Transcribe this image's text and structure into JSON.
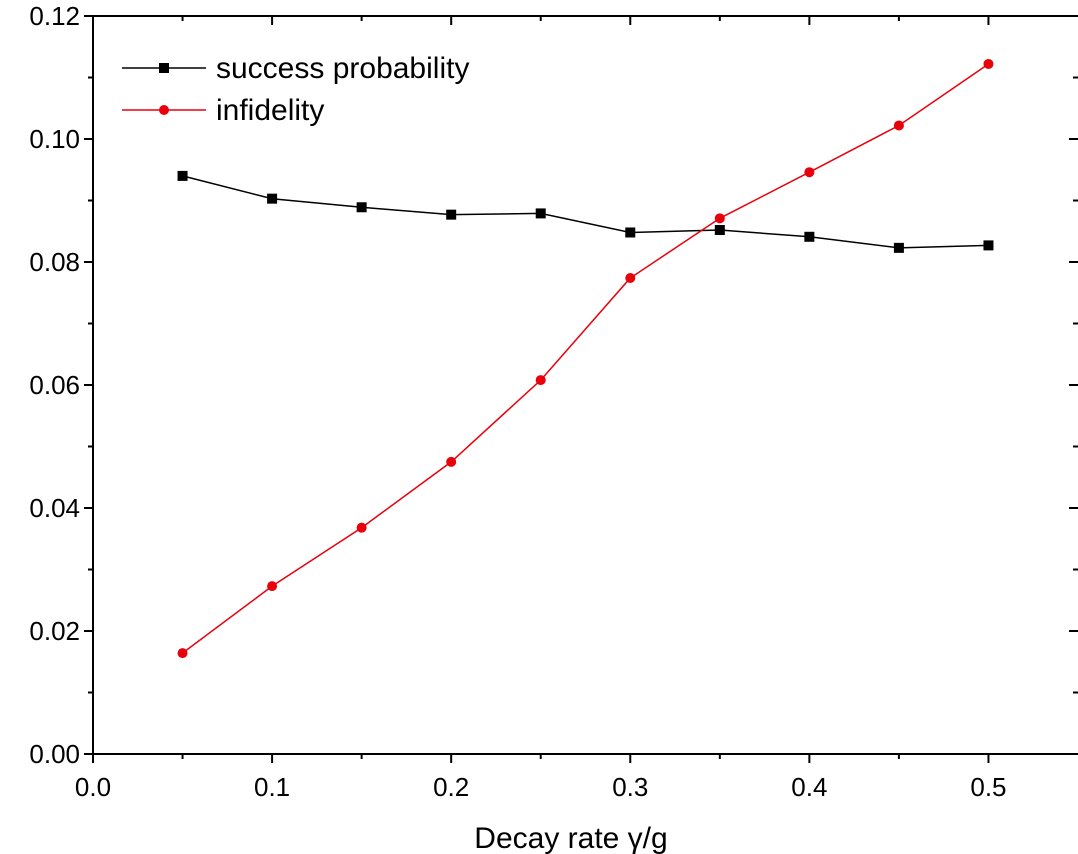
{
  "chart_data": {
    "type": "line",
    "xlabel": "Decay rate γ/g",
    "ylabel": "",
    "xlim": [
      0.0,
      0.55
    ],
    "ylim": [
      0.0,
      0.12
    ],
    "xticks": [
      "0.0",
      "0.1",
      "0.2",
      "0.3",
      "0.4",
      "0.5"
    ],
    "yticks": [
      "0.00",
      "0.02",
      "0.04",
      "0.06",
      "0.08",
      "0.10",
      "0.12"
    ],
    "grid": false,
    "legend_position": "top-left",
    "x": [
      0.05,
      0.1,
      0.15,
      0.2,
      0.25,
      0.3,
      0.35,
      0.4,
      0.45,
      0.5
    ],
    "series": [
      {
        "name": "success probability",
        "color": "#000000",
        "marker": "square",
        "values": [
          0.094,
          0.0903,
          0.0889,
          0.0877,
          0.0879,
          0.0848,
          0.0852,
          0.0841,
          0.0823,
          0.0827
        ]
      },
      {
        "name": "infidelity",
        "color": "#e8000b",
        "marker": "circle",
        "values": [
          0.0164,
          0.0273,
          0.0368,
          0.0475,
          0.0608,
          0.0774,
          0.0871,
          0.0946,
          0.1022,
          0.1122
        ]
      }
    ]
  }
}
